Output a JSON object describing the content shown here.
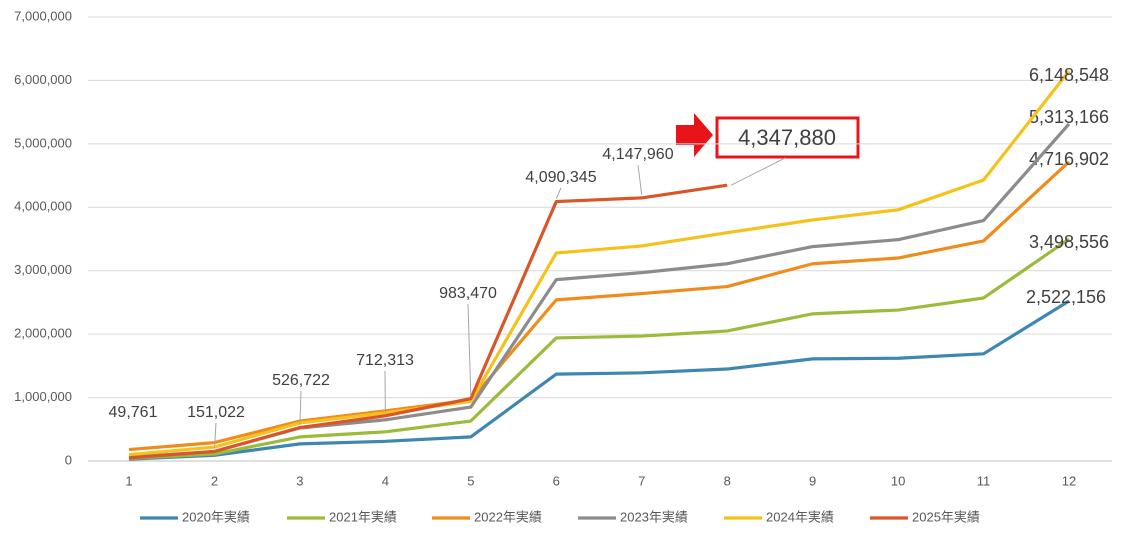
{
  "chart_data": {
    "type": "line",
    "categories": [
      1,
      2,
      3,
      4,
      5,
      6,
      7,
      8,
      9,
      10,
      11,
      12
    ],
    "ylim": [
      0,
      7000000
    ],
    "yticks": [
      0,
      {
        "value": 1000000,
        "label": "1,000,000"
      },
      {
        "value": 2000000,
        "label": "2,000,000"
      },
      {
        "value": 3000000,
        "label": "3,000,000"
      },
      {
        "value": 4000000,
        "label": "4,000,000"
      },
      {
        "value": 5000000,
        "label": "5,000,000"
      },
      {
        "value": 6000000,
        "label": "6,000,000"
      },
      {
        "value": 7000000,
        "label": "7,000,000"
      }
    ],
    "grid": true,
    "legend": "bottom",
    "series": [
      {
        "name": "2020年実績",
        "color": "#3f86b0",
        "values": [
          30000,
          90000,
          270000,
          310000,
          380000,
          1370000,
          1390000,
          1450000,
          1610000,
          1620000,
          1690000,
          2522156
        ],
        "value_labels": [
          null,
          null,
          null,
          null,
          null,
          null,
          null,
          null,
          null,
          null,
          null,
          "2,522,156"
        ]
      },
      {
        "name": "2021年実績",
        "color": "#9bbb3a",
        "values": [
          40000,
          110000,
          380000,
          460000,
          630000,
          1940000,
          1970000,
          2050000,
          2320000,
          2380000,
          2570000,
          3498556
        ],
        "value_labels": [
          null,
          null,
          null,
          null,
          null,
          null,
          null,
          null,
          null,
          null,
          null,
          "3,498,556"
        ]
      },
      {
        "name": "2022年実績",
        "color": "#ef8c1b",
        "values": [
          180000,
          290000,
          630000,
          790000,
          960000,
          2540000,
          2640000,
          2750000,
          3110000,
          3200000,
          3470000,
          4716902
        ],
        "value_labels": [
          null,
          null,
          null,
          null,
          null,
          null,
          null,
          null,
          null,
          null,
          null,
          "4,716,902"
        ]
      },
      {
        "name": "2023年実績",
        "color": "#8c8c8c",
        "values": [
          60000,
          150000,
          520000,
          650000,
          850000,
          2860000,
          2970000,
          3110000,
          3380000,
          3490000,
          3790000,
          5313166
        ],
        "value_labels": [
          null,
          null,
          null,
          null,
          null,
          null,
          null,
          null,
          null,
          null,
          null,
          "5,313,166"
        ]
      },
      {
        "name": "2024年実績",
        "color": "#f5c21b",
        "values": [
          100000,
          220000,
          600000,
          760000,
          940000,
          3280000,
          3390000,
          3600000,
          3800000,
          3960000,
          4430000,
          6148548
        ],
        "value_labels": [
          null,
          null,
          null,
          null,
          null,
          null,
          null,
          null,
          null,
          null,
          null,
          "6,148,548"
        ]
      },
      {
        "name": "2025年実績",
        "color": "#d9562b",
        "values": [
          49761,
          151022,
          526722,
          712313,
          983470,
          4090345,
          4147960,
          4347880,
          null,
          null,
          null,
          null
        ],
        "value_labels": [
          "49,761",
          "151,022",
          "526,722",
          "712,313",
          "983,470",
          "4,090,345",
          "4,147,960",
          "4,347,880",
          null,
          null,
          null,
          null
        ]
      }
    ]
  }
}
